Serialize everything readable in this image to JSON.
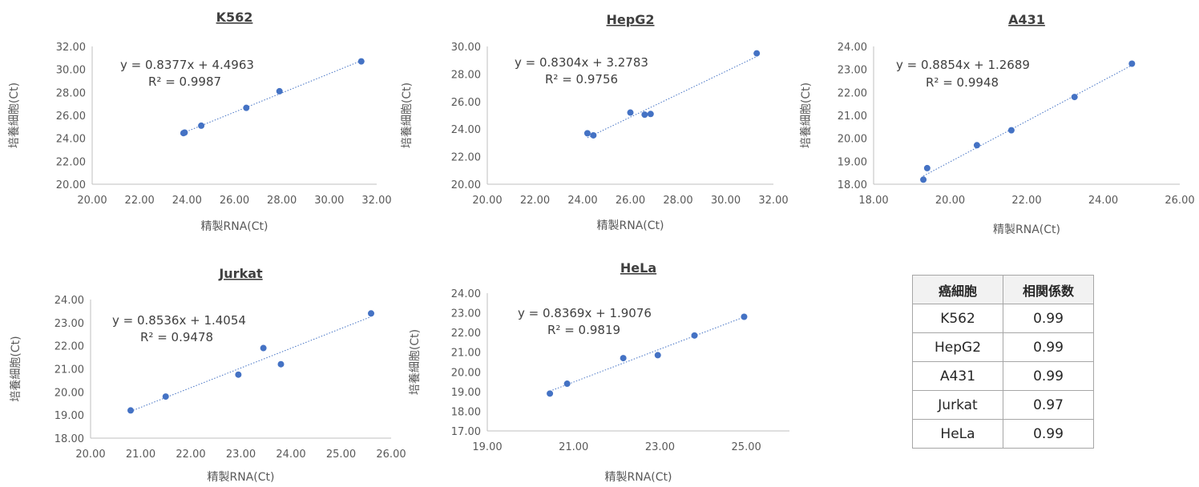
{
  "chart_data": [
    {
      "type": "scatter",
      "title": "K562",
      "xlabel": "精製RNA(Ct)",
      "ylabel": "培養細胞(Ct)",
      "xlim": [
        20,
        32
      ],
      "ylim": [
        20,
        32
      ],
      "xstep": 2,
      "ystep": 2,
      "equation": "y = 0.8377x + 4.4963",
      "r2": "R² = 0.9987",
      "trend": {
        "slope": 0.8377,
        "intercept": 4.4963
      },
      "points": [
        [
          23.85,
          24.45
        ],
        [
          23.9,
          24.5
        ],
        [
          24.6,
          25.1
        ],
        [
          26.5,
          26.65
        ],
        [
          27.9,
          28.1
        ],
        [
          31.35,
          30.7
        ]
      ]
    },
    {
      "type": "scatter",
      "title": "HepG2",
      "xlabel": "精製RNA(Ct)",
      "ylabel": "培養細胞(Ct)",
      "xlim": [
        20,
        32
      ],
      "ylim": [
        20,
        30
      ],
      "xstep": 2,
      "ystep": 2,
      "equation": "y = 0.8304x + 3.2783",
      "r2": "R² = 0.9756",
      "trend": {
        "slope": 0.8304,
        "intercept": 3.2783
      },
      "points": [
        [
          24.2,
          23.7
        ],
        [
          24.45,
          23.55
        ],
        [
          26.0,
          25.2
        ],
        [
          26.6,
          25.05
        ],
        [
          26.85,
          25.1
        ],
        [
          31.3,
          29.5
        ]
      ]
    },
    {
      "type": "scatter",
      "title": "A431",
      "xlabel": "精製RNA(Ct)",
      "ylabel": "培養細胞(Ct)",
      "xlim": [
        18,
        26
      ],
      "ylim": [
        18,
        24
      ],
      "xstep": 2,
      "ystep": 1,
      "equation": "y = 0.8854x + 1.2689",
      "r2": "R² = 0.9948",
      "trend": {
        "slope": 0.8854,
        "intercept": 1.2689
      },
      "points": [
        [
          19.3,
          18.2
        ],
        [
          19.4,
          18.7
        ],
        [
          20.7,
          19.7
        ],
        [
          21.6,
          20.35
        ],
        [
          23.25,
          21.8
        ],
        [
          24.75,
          23.25
        ]
      ]
    },
    {
      "type": "scatter",
      "title": "Jurkat",
      "xlabel": "精製RNA(Ct)",
      "ylabel": "培養細胞(Ct)",
      "xlim": [
        20,
        26
      ],
      "ylim": [
        18,
        24
      ],
      "xstep": 1,
      "ystep": 1,
      "equation": "y = 0.8536x + 1.4054",
      "r2": "R² = 0.9478",
      "trend": {
        "slope": 0.8536,
        "intercept": 1.4054
      },
      "points": [
        [
          20.8,
          19.2
        ],
        [
          21.5,
          19.8
        ],
        [
          22.95,
          20.75
        ],
        [
          23.45,
          21.9
        ],
        [
          23.8,
          21.2
        ],
        [
          25.6,
          23.4
        ]
      ]
    },
    {
      "type": "scatter",
      "title": "HeLa",
      "xlabel": "精製RNA(Ct)",
      "ylabel": "培養細胞(Ct)",
      "xlim": [
        19,
        26
      ],
      "ylim": [
        17,
        24
      ],
      "xstep": 2,
      "ystep": 1,
      "equation": "y = 0.8369x + 1.9076",
      "r2": "R² = 0.9819",
      "trend": {
        "slope": 0.8369,
        "intercept": 1.9076
      },
      "points": [
        [
          20.45,
          18.9
        ],
        [
          20.85,
          19.4
        ],
        [
          22.15,
          20.7
        ],
        [
          22.95,
          20.85
        ],
        [
          23.8,
          21.85
        ],
        [
          24.95,
          22.8
        ]
      ]
    }
  ],
  "table": {
    "headers": [
      "癌細胞",
      "相関係数"
    ],
    "rows": [
      [
        "K562",
        "0.99"
      ],
      [
        "HepG2",
        "0.99"
      ],
      [
        "A431",
        "0.99"
      ],
      [
        "Jurkat",
        "0.97"
      ],
      [
        "HeLa",
        "0.99"
      ]
    ]
  },
  "colors": {
    "marker": "#4472c4",
    "trendline": "#4472c4",
    "axis": "#bfbfbf",
    "text": "#595959"
  }
}
